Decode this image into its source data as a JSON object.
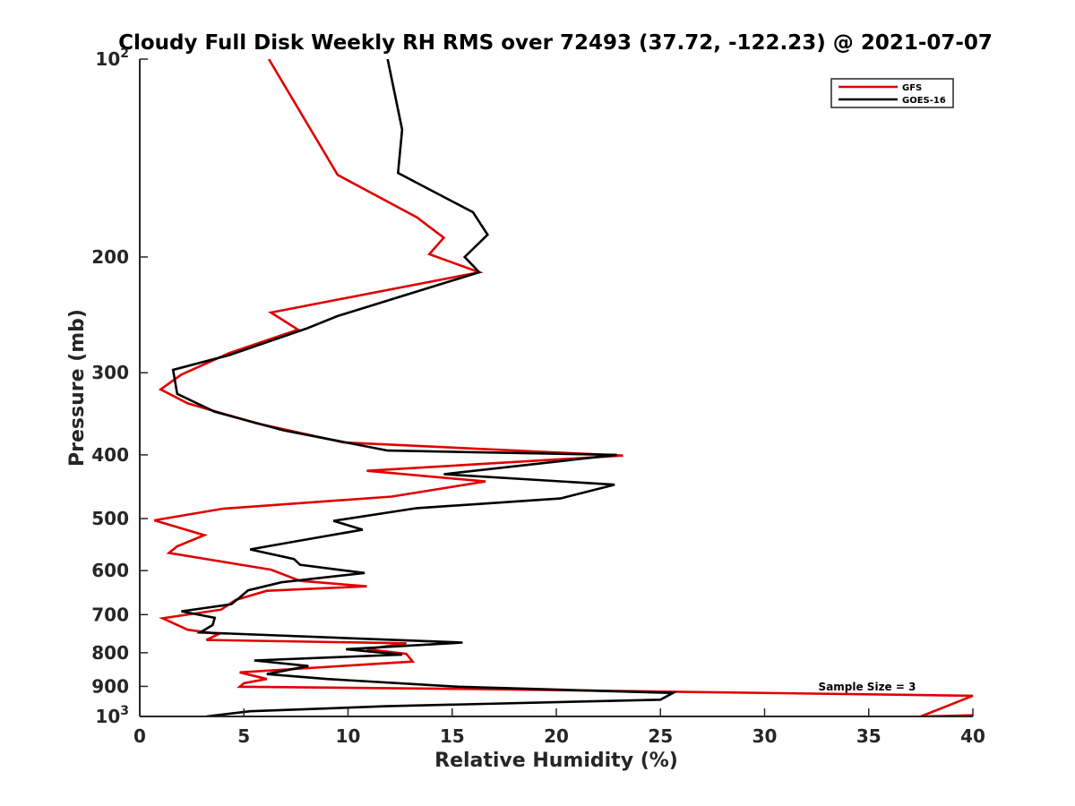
{
  "chart_data": {
    "type": "line",
    "title": "Cloudy Full Disk Weekly RH RMS over 72493 (37.72, -122.23) @ 2021-07-07",
    "xlabel": "Relative Humidity (%)",
    "ylabel": "Pressure (mb)",
    "xlim": [
      0,
      40
    ],
    "ylim": [
      100,
      1000
    ],
    "y_scale": "log",
    "y_reversed": true,
    "x_ticks": [
      0,
      5,
      10,
      15,
      20,
      25,
      30,
      35,
      40
    ],
    "x_tick_labels": [
      "0",
      "5",
      "10",
      "15",
      "20",
      "25",
      "30",
      "35",
      "40"
    ],
    "y_ticks": [
      100,
      200,
      300,
      400,
      500,
      600,
      700,
      800,
      900,
      1000
    ],
    "y_tick_labels": [
      "10^2",
      "200",
      "300",
      "400",
      "500",
      "600",
      "700",
      "800",
      "900",
      "10^3"
    ],
    "grid": false,
    "legend_position": "top-right",
    "annotation": "Sample Size = 3",
    "series": [
      {
        "name": "GFS",
        "color": "#e00000",
        "points": [
          [
            6.2,
            100
          ],
          [
            9.5,
            150
          ],
          [
            13.3,
            174
          ],
          [
            14.6,
            187
          ],
          [
            13.9,
            198
          ],
          [
            16.3,
            211
          ],
          [
            6.3,
            243
          ],
          [
            7.6,
            258
          ],
          [
            4.3,
            280
          ],
          [
            2.0,
            302
          ],
          [
            1.0,
            318
          ],
          [
            2.3,
            334
          ],
          [
            5.6,
            358
          ],
          [
            9.8,
            383
          ],
          [
            23.2,
            401
          ],
          [
            10.9,
            423
          ],
          [
            16.6,
            439
          ],
          [
            12.1,
            463
          ],
          [
            4.0,
            483
          ],
          [
            0.7,
            503
          ],
          [
            3.1,
            530
          ],
          [
            1.8,
            551
          ],
          [
            1.4,
            564
          ],
          [
            6.3,
            598
          ],
          [
            7.7,
            622
          ],
          [
            10.9,
            634
          ],
          [
            6.1,
            644
          ],
          [
            4.6,
            665
          ],
          [
            3.9,
            688
          ],
          [
            1.1,
            709
          ],
          [
            2.3,
            738
          ],
          [
            3.8,
            749
          ],
          [
            3.2,
            765
          ],
          [
            12.8,
            774
          ],
          [
            10.9,
            790
          ],
          [
            12.8,
            803
          ],
          [
            13.1,
            825
          ],
          [
            4.8,
            857
          ],
          [
            6.1,
            877
          ],
          [
            5.0,
            890
          ],
          [
            4.8,
            901
          ],
          [
            15.4,
            908
          ],
          [
            40.0,
            930
          ],
          [
            37.5,
            1000
          ],
          [
            40.0,
            996
          ]
        ]
      },
      {
        "name": "GOES-16",
        "color": "#000000",
        "points": [
          [
            11.9,
            100
          ],
          [
            12.6,
            128
          ],
          [
            12.4,
            149
          ],
          [
            16.0,
            171
          ],
          [
            16.7,
            185
          ],
          [
            15.6,
            200
          ],
          [
            16.3,
            211
          ],
          [
            9.5,
            246
          ],
          [
            8.0,
            257
          ],
          [
            4.3,
            282
          ],
          [
            1.6,
            297
          ],
          [
            1.8,
            323
          ],
          [
            3.6,
            344
          ],
          [
            6.9,
            367
          ],
          [
            11.9,
            394
          ],
          [
            22.9,
            400
          ],
          [
            14.6,
            428
          ],
          [
            22.8,
            444
          ],
          [
            20.2,
            466
          ],
          [
            13.3,
            482
          ],
          [
            9.3,
            504
          ],
          [
            10.7,
            520
          ],
          [
            7.7,
            540
          ],
          [
            5.3,
            557
          ],
          [
            7.4,
            576
          ],
          [
            7.7,
            588
          ],
          [
            10.8,
            605
          ],
          [
            6.8,
            625
          ],
          [
            5.2,
            643
          ],
          [
            4.8,
            659
          ],
          [
            4.4,
            675
          ],
          [
            2.0,
            692
          ],
          [
            3.6,
            708
          ],
          [
            3.5,
            726
          ],
          [
            2.9,
            745
          ],
          [
            15.5,
            772
          ],
          [
            9.9,
            790
          ],
          [
            12.6,
            805
          ],
          [
            5.5,
            822
          ],
          [
            8.1,
            838
          ],
          [
            6.1,
            862
          ],
          [
            9.0,
            877
          ],
          [
            15.3,
            901
          ],
          [
            25.6,
            921
          ],
          [
            25.0,
            943
          ],
          [
            11.8,
            965
          ],
          [
            5.3,
            982
          ],
          [
            3.2,
            1000
          ]
        ]
      }
    ]
  }
}
